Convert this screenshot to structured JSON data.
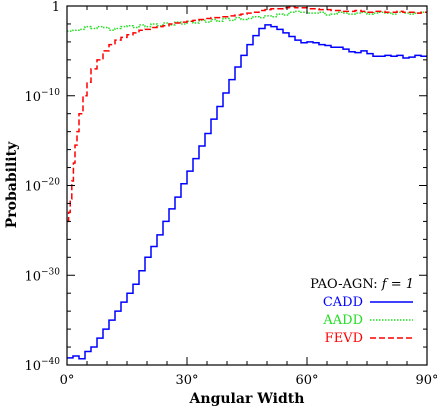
{
  "chart_data": {
    "type": "line",
    "xlabel": "Angular Width",
    "ylabel": "Probability",
    "xlim": [
      0,
      90
    ],
    "ylim_log10": [
      -40,
      0
    ],
    "y_scale": "log",
    "x_ticks": [
      0,
      30,
      60,
      90
    ],
    "x_tick_labels": [
      "0°",
      "30°",
      "60°",
      "90°"
    ],
    "y_ticks_log10": [
      -40,
      -30,
      -20,
      -10,
      0
    ],
    "y_tick_labels": [
      {
        "base": "10",
        "exp": "−40"
      },
      {
        "base": "10",
        "exp": "−30"
      },
      {
        "base": "10",
        "exp": "−20"
      },
      {
        "base": "10",
        "exp": "−10"
      },
      {
        "base": "1",
        "exp": ""
      }
    ],
    "legend": {
      "title": "PAO-AGN: ",
      "title_math": "f = 1",
      "placement": "bottom-right"
    },
    "series": [
      {
        "name": "CADD",
        "color": "#0000ff",
        "dash": "solid",
        "x": [
          0,
          1.5,
          3,
          4.5,
          6,
          7.5,
          9,
          10.5,
          12,
          13.5,
          15,
          16.5,
          18,
          19.5,
          21,
          22.5,
          24,
          25.5,
          27,
          28.5,
          30,
          31.5,
          33,
          34.5,
          36,
          37.5,
          39,
          40.5,
          42,
          43.5,
          45,
          46.5,
          48,
          49.5,
          51,
          52.5,
          54,
          55.5,
          57,
          58.5,
          60,
          61.5,
          63,
          64.5,
          66,
          67.5,
          69,
          70.5,
          72,
          73.5,
          75,
          76.5,
          78,
          79.5,
          81,
          82.5,
          84,
          85.5,
          87,
          88.5,
          90
        ],
        "y_log10": [
          -39.2,
          -39.0,
          -39.3,
          -38.5,
          -38.0,
          -37.0,
          -36.0,
          -35.0,
          -34.0,
          -33.0,
          -32.0,
          -31.0,
          -29.5,
          -28.0,
          -26.8,
          -25.5,
          -24.0,
          -22.6,
          -21.3,
          -19.8,
          -18.4,
          -17.0,
          -15.6,
          -14.2,
          -12.6,
          -11.2,
          -9.7,
          -8.2,
          -6.8,
          -5.5,
          -4.3,
          -3.3,
          -2.5,
          -2.1,
          -2.3,
          -2.6,
          -3.0,
          -3.4,
          -3.8,
          -4.1,
          -4.0,
          -4.1,
          -4.3,
          -4.4,
          -4.6,
          -4.6,
          -4.8,
          -5.1,
          -5.2,
          -5.0,
          -5.3,
          -5.6,
          -5.6,
          -5.5,
          -5.6,
          -5.5,
          -5.8,
          -5.7,
          -5.5,
          -5.6,
          -5.5
        ]
      },
      {
        "name": "AADD",
        "color": "#22dd22",
        "dash": "dotted",
        "x": [
          0,
          1.5,
          3,
          4.5,
          6,
          7.5,
          9,
          10.5,
          12,
          13.5,
          15,
          16.5,
          18,
          19.5,
          21,
          22.5,
          24,
          25.5,
          27,
          28.5,
          30,
          31.5,
          33,
          34.5,
          36,
          37.5,
          39,
          40.5,
          42,
          43.5,
          45,
          46.5,
          48,
          49.5,
          51,
          52.5,
          54,
          55.5,
          57,
          58.5,
          60,
          61.5,
          63,
          64.5,
          66,
          67.5,
          69,
          70.5,
          72,
          73.5,
          75,
          76.5,
          78,
          79.5,
          81,
          82.5,
          84,
          85.5,
          87,
          88.5,
          90
        ],
        "y_log10": [
          -2.8,
          -2.7,
          -2.6,
          -2.3,
          -2.5,
          -2.3,
          -2.4,
          -2.7,
          -2.5,
          -2.3,
          -2.2,
          -2.4,
          -2.1,
          -2.3,
          -2.0,
          -2.2,
          -1.9,
          -2.1,
          -1.8,
          -2.0,
          -1.7,
          -1.9,
          -1.6,
          -1.8,
          -1.5,
          -1.7,
          -1.4,
          -1.6,
          -1.3,
          -1.5,
          -1.4,
          -1.2,
          -1.3,
          -1.1,
          -1.2,
          -0.9,
          -1.0,
          -0.7,
          -0.6,
          -0.7,
          -0.8,
          -0.8,
          -0.7,
          -1.0,
          -0.9,
          -0.7,
          -0.8,
          -0.9,
          -0.8,
          -0.7,
          -0.9,
          -0.8,
          -0.7,
          -0.8,
          -0.9,
          -0.7,
          -0.8,
          -0.9,
          -0.8,
          -0.7,
          -0.8
        ]
      },
      {
        "name": "FEVD",
        "color": "#ff0000",
        "dash": "dashed",
        "x": [
          0,
          0.4,
          0.8,
          1.2,
          1.6,
          2.0,
          2.5,
          3.0,
          4.0,
          5.0,
          6.0,
          7.5,
          9.0,
          10.5,
          12,
          13.5,
          15,
          16.5,
          18,
          19.5,
          21,
          22.5,
          24,
          25.5,
          27,
          28.5,
          30,
          31.5,
          33,
          34.5,
          36,
          37.5,
          39,
          40.5,
          42,
          43.5,
          45,
          46.5,
          48,
          49.5,
          51,
          52.5,
          54,
          55.5,
          57,
          58.5,
          60,
          61.5,
          63,
          64.5,
          66,
          67.5,
          69,
          70.5,
          72,
          73.5,
          75,
          76.5,
          78,
          79.5,
          81,
          82.5,
          84,
          85.5,
          87,
          88.5,
          90
        ],
        "y_log10": [
          -24.0,
          -23.0,
          -21.5,
          -19.5,
          -17.5,
          -15.5,
          -14.0,
          -12.0,
          -10.0,
          -8.5,
          -7.0,
          -6.0,
          -5.0,
          -4.3,
          -3.8,
          -3.5,
          -3.2,
          -3.0,
          -2.7,
          -2.6,
          -2.4,
          -2.3,
          -2.2,
          -2.0,
          -1.9,
          -1.8,
          -1.7,
          -1.6,
          -1.5,
          -1.4,
          -1.3,
          -1.3,
          -1.2,
          -1.1,
          -1.0,
          -0.9,
          -0.8,
          -0.7,
          -0.5,
          -0.4,
          -0.3,
          -0.3,
          -0.2,
          -0.1,
          -0.2,
          -0.2,
          -0.3,
          -0.3,
          -0.4,
          -0.4,
          -0.5,
          -0.5,
          -0.6,
          -0.6,
          -0.5,
          -0.6,
          -0.7,
          -0.6,
          -0.6,
          -0.7,
          -0.7,
          -0.6,
          -0.7,
          -0.7,
          -0.8,
          -0.7,
          -0.8
        ]
      }
    ]
  }
}
